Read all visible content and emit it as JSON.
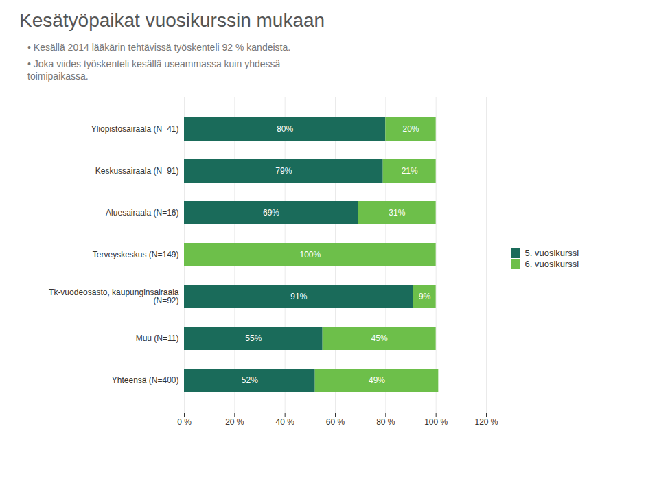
{
  "chart_data": {
    "type": "bar",
    "orientation": "horizontal",
    "stacked": true,
    "title": "Kesätyöpaikat vuosikurssin mukaan",
    "annotations": [
      "•  Kesällä 2014 lääkärin tehtävissä työskenteli 92 % kandeista.",
      "•  Joka viides työskenteli kesällä useammassa kuin yhdessä\ntoimipaikassa."
    ],
    "categories": [
      "Yliopistosairaala (N=41)",
      "Keskussairaala (N=91)",
      "Aluesairaala (N=16)",
      "Terveyskeskus (N=149)",
      "Tk-vuodeosasto, kaupunginsairaala\n(N=92)",
      "Muu (N=11)",
      "Yhteensä (N=400)"
    ],
    "series": [
      {
        "name": "5. vuosikurssi",
        "color": "#1a6b5a",
        "values": [
          80,
          79,
          69,
          0,
          91,
          55,
          52
        ],
        "value_labels": [
          "80%",
          "79%",
          "69%",
          null,
          "91%",
          "55%",
          "52%"
        ]
      },
      {
        "name": "6. vuosikurssi",
        "color": "#6dbf4a",
        "values": [
          20,
          21,
          31,
          100,
          9,
          45,
          49
        ],
        "value_labels": [
          "20%",
          "21%",
          "31%",
          "100%",
          "9%",
          "45%",
          "49%"
        ]
      }
    ],
    "xlim": [
      0,
      120
    ],
    "xticks": [
      {
        "value": 0,
        "label": "0 %"
      },
      {
        "value": 20,
        "label": "20 %"
      },
      {
        "value": 40,
        "label": "40 %"
      },
      {
        "value": 60,
        "label": "60 %"
      },
      {
        "value": 80,
        "label": "80 %"
      },
      {
        "value": 100,
        "label": "100 %"
      },
      {
        "value": 120,
        "label": "120 %"
      }
    ],
    "grid": true,
    "legend": "right",
    "data_labels": true
  }
}
